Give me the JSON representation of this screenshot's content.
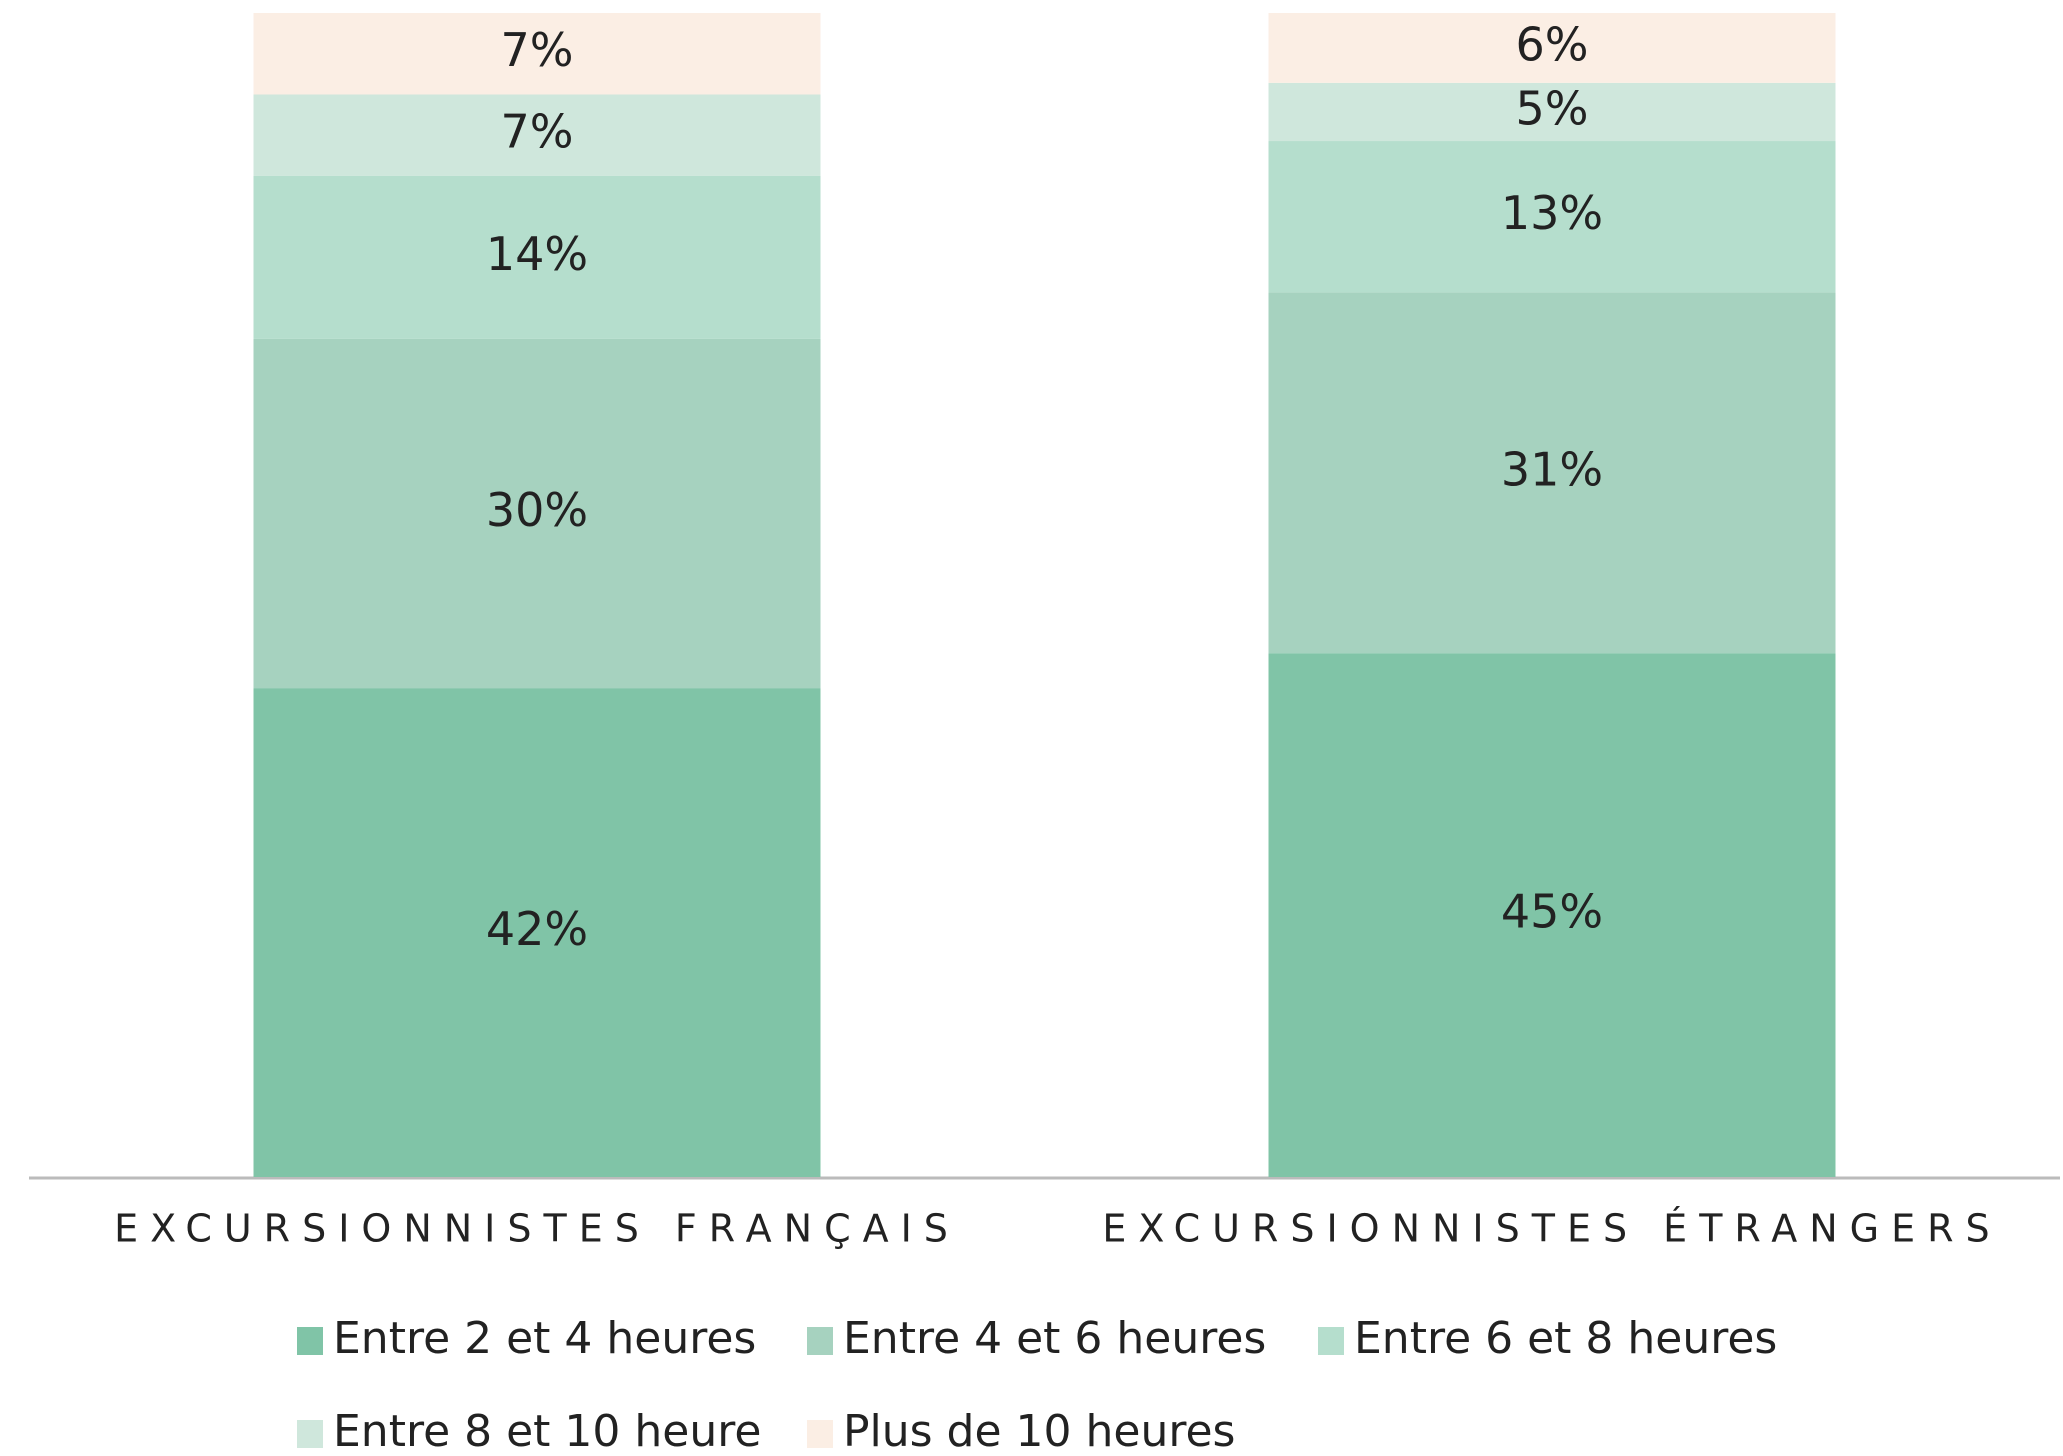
{
  "chart_data": {
    "type": "stacked_bar",
    "categories": [
      "EXCURSIONNISTES FRANÇAIS",
      "EXCURSIONNISTES ÉTRANGERS"
    ],
    "series": [
      {
        "name": "Entre 2 et 4 heures",
        "color": "#80c4a7",
        "values": [
          42,
          45
        ],
        "value_labels": [
          "42%",
          "45%"
        ]
      },
      {
        "name": "Entre 4 et 6 heures",
        "color": "#a6d2bf",
        "values": [
          30,
          31
        ],
        "value_labels": [
          "30%",
          "31%"
        ]
      },
      {
        "name": "Entre 6 et 8 heures",
        "color": "#b5decd",
        "values": [
          14,
          13
        ],
        "value_labels": [
          "14%",
          "13%"
        ]
      },
      {
        "name": "Entre 8 et 10 heure",
        "color": "#cfe7dc",
        "values": [
          7,
          5
        ],
        "value_labels": [
          "7%",
          "5%"
        ]
      },
      {
        "name": "Plus de 10 heures",
        "color": "#fbeee4",
        "values": [
          7,
          6
        ],
        "value_labels": [
          "7%",
          "6%"
        ]
      }
    ],
    "ylim": [
      0,
      100
    ]
  }
}
